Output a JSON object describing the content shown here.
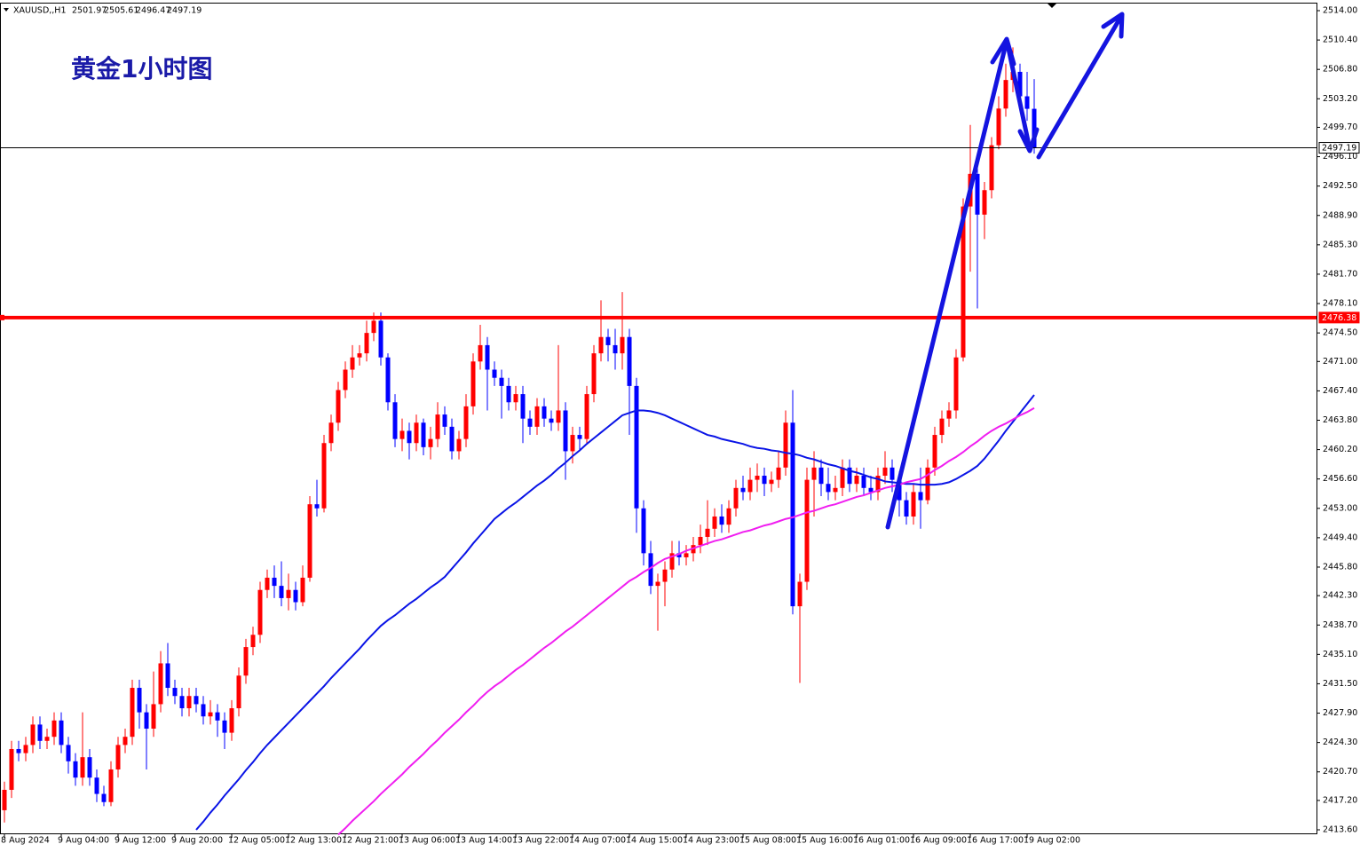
{
  "chart_data": {
    "type": "candlestick",
    "symbol": "XAUUSD,,H1",
    "annotation": "黄金1小时图",
    "up_color": "#ff0000",
    "down_color": "#0000ff",
    "ylim": [
      2413.6,
      2514
    ],
    "yticks": [
      {
        "value": 2514,
        "label": "2514.00"
      },
      {
        "value": 2510.4,
        "label": "2510.40"
      },
      {
        "value": 2506.8,
        "label": "2506.80"
      },
      {
        "value": 2503.2,
        "label": "2503.20"
      },
      {
        "value": 2499.7,
        "label": "2499.70"
      },
      {
        "value": 2496.1,
        "label": "2496.10"
      },
      {
        "value": 2492.5,
        "label": "2492.50"
      },
      {
        "value": 2488.9,
        "label": "2488.90"
      },
      {
        "value": 2485.3,
        "label": "2485.30"
      },
      {
        "value": 2481.7,
        "label": "2481.70"
      },
      {
        "value": 2478.1,
        "label": "2478.10"
      },
      {
        "value": 2474.5,
        "label": "2474.50"
      },
      {
        "value": 2471,
        "label": "2471.00"
      },
      {
        "value": 2467.4,
        "label": "2467.40"
      },
      {
        "value": 2463.8,
        "label": "2463.80"
      },
      {
        "value": 2460.2,
        "label": "2460.20"
      },
      {
        "value": 2456.6,
        "label": "2456.60"
      },
      {
        "value": 2453,
        "label": "2453.00"
      },
      {
        "value": 2449.4,
        "label": "2449.40"
      },
      {
        "value": 2445.8,
        "label": "2445.80"
      },
      {
        "value": 2442.3,
        "label": "2442.30"
      },
      {
        "value": 2438.7,
        "label": "2438.70"
      },
      {
        "value": 2435.1,
        "label": "2435.10"
      },
      {
        "value": 2431.5,
        "label": "2431.50"
      },
      {
        "value": 2427.9,
        "label": "2427.90"
      },
      {
        "value": 2424.3,
        "label": "2424.30"
      },
      {
        "value": 2420.7,
        "label": "2420.70"
      },
      {
        "value": 2417.2,
        "label": "2417.20"
      },
      {
        "value": 2413.6,
        "label": "2413.60"
      }
    ],
    "categories": [
      "8 Aug 2024",
      null,
      null,
      null,
      null,
      null,
      null,
      null,
      "9 Aug 04:00",
      null,
      null,
      null,
      null,
      null,
      null,
      null,
      "9 Aug 12:00",
      null,
      null,
      null,
      null,
      null,
      null,
      null,
      "9 Aug 20:00",
      null,
      null,
      null,
      null,
      null,
      null,
      null,
      "12 Aug 05:00",
      null,
      null,
      null,
      null,
      null,
      null,
      null,
      "12 Aug 13:00",
      null,
      null,
      null,
      null,
      null,
      null,
      null,
      "12 Aug 21:00",
      null,
      null,
      null,
      null,
      null,
      null,
      null,
      "13 Aug 06:00",
      null,
      null,
      null,
      null,
      null,
      null,
      null,
      "13 Aug 14:00",
      null,
      null,
      null,
      null,
      null,
      null,
      null,
      "13 Aug 22:00",
      null,
      null,
      null,
      null,
      null,
      null,
      null,
      "14 Aug 07:00",
      null,
      null,
      null,
      null,
      null,
      null,
      null,
      "14 Aug 15:00",
      null,
      null,
      null,
      null,
      null,
      null,
      null,
      "14 Aug 23:00",
      null,
      null,
      null,
      null,
      null,
      null,
      null,
      "15 Aug 08:00",
      null,
      null,
      null,
      null,
      null,
      null,
      null,
      "15 Aug 16:00",
      null,
      null,
      null,
      null,
      null,
      null,
      null,
      "16 Aug 01:00",
      null,
      null,
      null,
      null,
      null,
      null,
      null,
      "16 Aug 09:00",
      null,
      null,
      null,
      null,
      null,
      null,
      null,
      "16 Aug 17:00",
      null,
      null,
      null,
      null,
      null,
      null,
      null,
      "19 Aug 02:00",
      null
    ],
    "open": [
      2416,
      2418.5,
      2423.5,
      2423,
      2424,
      2426.5,
      2424.5,
      2425,
      2427,
      2424,
      2422,
      2420,
      2422.5,
      2420,
      2418,
      2417,
      2421,
      2424,
      2425,
      2431,
      2428,
      2426,
      2429,
      2434,
      2431,
      2430,
      2428.5,
      2430,
      2429,
      2427.5,
      2428,
      2427,
      2425.5,
      2428.5,
      2432.5,
      2436,
      2437.5,
      2443,
      2444.5,
      2443.5,
      2442,
      2443,
      2441.5,
      2444.5,
      2453.5,
      2453,
      2461,
      2463.5,
      2467.5,
      2470,
      2471.5,
      2472,
      2474.5,
      2476,
      2471.5,
      2466,
      2461.5,
      2462.5,
      2461,
      2463.5,
      2460.5,
      2461.5,
      2464.5,
      2463,
      2460,
      2461.5,
      2465.5,
      2471,
      2473,
      2470,
      2469,
      2468,
      2466,
      2467,
      2464,
      2463,
      2465.5,
      2464,
      2463.5,
      2465,
      2460,
      2462,
      2461.5,
      2467,
      2472,
      2474,
      2473,
      2472,
      2474,
      2468,
      2453,
      2447.5,
      2443.5,
      2444,
      2445.5,
      2447.5,
      2447,
      2447.5,
      2448.5,
      2449.5,
      2450.5,
      2452,
      2451,
      2453,
      2455.5,
      2455,
      2456.5,
      2457,
      2456,
      2456.5,
      2458,
      2463.5,
      2441,
      2444,
      2456.5,
      2458,
      2456,
      2455,
      2455.5,
      2458,
      2456,
      2457,
      2455.5,
      2455,
      2457,
      2458,
      2456.5,
      2454,
      2452,
      2455,
      2454,
      2458,
      2462,
      2464,
      2465,
      2471.5,
      2490,
      2494,
      2489,
      2492,
      2497.5,
      2502,
      2505.5,
      2506.5,
      2503.5,
      2501.97
    ],
    "high": [
      2419.5,
      2424.5,
      2424.5,
      2425,
      2427.5,
      2427.5,
      2426,
      2428,
      2428,
      2425,
      2423,
      2428,
      2423.5,
      2421,
      2419,
      2422,
      2425,
      2426,
      2432,
      2432,
      2429,
      2433,
      2435.5,
      2436.5,
      2432,
      2431,
      2431,
      2431,
      2430,
      2429.5,
      2429,
      2428,
      2429.5,
      2433.5,
      2437,
      2438.5,
      2444,
      2445.5,
      2446,
      2446.5,
      2445,
      2444,
      2446,
      2454.5,
      2456.5,
      2462,
      2464.5,
      2468.5,
      2471,
      2473,
      2473,
      2476,
      2477,
      2477,
      2472,
      2467,
      2464,
      2463.5,
      2464.5,
      2464,
      2463,
      2466,
      2465.5,
      2464,
      2462.5,
      2467,
      2472,
      2475.5,
      2474,
      2471,
      2470,
      2469,
      2468,
      2468,
      2465,
      2466.5,
      2466.5,
      2465,
      2473,
      2466,
      2463,
      2463,
      2468,
      2473,
      2478.5,
      2475,
      2475,
      2479.5,
      2475,
      2469,
      2454,
      2449,
      2445,
      2446.5,
      2449,
      2449,
      2448.5,
      2449.5,
      2451,
      2454,
      2453,
      2453.5,
      2454,
      2456.5,
      2457,
      2458,
      2458.5,
      2458,
      2457.5,
      2460,
      2465,
      2467.5,
      2445,
      2458,
      2460,
      2459,
      2458,
      2457,
      2459,
      2459,
      2458,
      2458,
      2457,
      2458,
      2460,
      2459,
      2457.5,
      2455,
      2456,
      2458,
      2459,
      2463,
      2465,
      2466,
      2472.5,
      2491,
      2500,
      2495,
      2493,
      2498.5,
      2503.5,
      2507.5,
      2509.5,
      2507.5,
      2506.5,
      2505.61
    ],
    "low": [
      2414.5,
      2417.5,
      2422,
      2422,
      2423,
      2423.5,
      2423.5,
      2424,
      2423,
      2420.5,
      2419,
      2419,
      2419,
      2417,
      2416.5,
      2416.5,
      2420,
      2423,
      2424,
      2426,
      2421,
      2425,
      2428,
      2430,
      2429,
      2427.5,
      2427.5,
      2428,
      2426.5,
      2426.5,
      2425,
      2423.5,
      2424.5,
      2427.5,
      2431.5,
      2435,
      2436.5,
      2442,
      2442,
      2441,
      2440.5,
      2440.5,
      2441,
      2444,
      2452,
      2452.5,
      2460,
      2462.5,
      2466.5,
      2469,
      2470.5,
      2471,
      2473.5,
      2470.5,
      2465,
      2460.5,
      2460,
      2459,
      2460,
      2459.5,
      2459,
      2460.5,
      2462,
      2459,
      2459,
      2460.5,
      2464.5,
      2470,
      2465,
      2468,
      2464,
      2465,
      2465,
      2461,
      2462,
      2462,
      2463,
      2462.5,
      2462.5,
      2456.5,
      2458.5,
      2460,
      2461,
      2466,
      2471,
      2471,
      2470,
      2470,
      2462,
      2450,
      2446,
      2442.5,
      2438,
      2441,
      2444.5,
      2446,
      2446,
      2446.5,
      2447.5,
      2448.5,
      2449.5,
      2450,
      2450,
      2452,
      2454,
      2454,
      2455,
      2454.5,
      2455,
      2455.5,
      2457,
      2440,
      2431.6,
      2443,
      2452,
      2454.5,
      2454,
      2454,
      2454.5,
      2455,
      2455,
      2454.5,
      2454,
      2454,
      2456,
      2455,
      2452,
      2451,
      2451,
      2450.5,
      2453.5,
      2457,
      2461,
      2463,
      2464,
      2471,
      2482,
      2477.5,
      2486,
      2491,
      2497,
      2501,
      2504,
      2502,
      2500.5,
      2496.47
    ],
    "close": [
      2418.5,
      2423.5,
      2423,
      2424,
      2426.5,
      2424.5,
      2425,
      2427,
      2424,
      2422,
      2420,
      2422.5,
      2420,
      2418,
      2417,
      2421,
      2424,
      2425,
      2431,
      2428,
      2426,
      2429,
      2434,
      2431,
      2430,
      2428.5,
      2430,
      2429,
      2427.5,
      2428,
      2427,
      2425.5,
      2428.5,
      2432.5,
      2436,
      2437.5,
      2443,
      2444.5,
      2443.5,
      2442,
      2443,
      2441.5,
      2444.5,
      2453.5,
      2453,
      2461,
      2463.5,
      2467.5,
      2470,
      2471.5,
      2472,
      2474.5,
      2476,
      2471.5,
      2466,
      2461.5,
      2462.5,
      2461,
      2463.5,
      2460.5,
      2461.5,
      2464.5,
      2463,
      2460,
      2461.5,
      2465.5,
      2471,
      2473,
      2470,
      2469,
      2468,
      2466,
      2467,
      2464,
      2463,
      2465.5,
      2464,
      2463.5,
      2465,
      2460,
      2462,
      2461.5,
      2467,
      2472,
      2474,
      2473,
      2472,
      2474,
      2468,
      2453,
      2447.5,
      2443.5,
      2444,
      2445.5,
      2447.5,
      2447,
      2447.5,
      2448.5,
      2449.5,
      2450.5,
      2452,
      2451,
      2453,
      2455.5,
      2455,
      2456.5,
      2457,
      2456,
      2456.5,
      2458,
      2463.5,
      2441,
      2444,
      2456.5,
      2458,
      2456,
      2455,
      2455.5,
      2458,
      2456,
      2457,
      2455.5,
      2455,
      2457,
      2458,
      2456.5,
      2454,
      2452,
      2455,
      2454,
      2458,
      2462,
      2464,
      2465,
      2471.5,
      2490,
      2494,
      2489,
      2492,
      2497.5,
      2502,
      2505.5,
      2506.5,
      2503.5,
      2501.97,
      2497.19
    ],
    "overlays": [
      {
        "color": "#0a14e6",
        "values": [
          null,
          null,
          null,
          null,
          null,
          null,
          null,
          null,
          null,
          null,
          null,
          null,
          null,
          null,
          null,
          null,
          null,
          null,
          null,
          null,
          null,
          null,
          null,
          null,
          null,
          null,
          null,
          2413.6,
          2414.6,
          2415.7,
          2416.7,
          2417.8,
          2418.8,
          2419.8,
          2420.9,
          2421.9,
          2423,
          2424,
          2424.9,
          2425.8,
          2426.7,
          2427.6,
          2428.5,
          2429.4,
          2430.3,
          2431.2,
          2432.2,
          2433.1,
          2434,
          2434.9,
          2435.8,
          2436.8,
          2437.7,
          2438.6,
          2439.3,
          2439.9,
          2440.6,
          2441.3,
          2441.9,
          2442.6,
          2443.3,
          2443.9,
          2444.6,
          2445.6,
          2446.6,
          2447.6,
          2448.7,
          2449.7,
          2450.7,
          2451.7,
          2452.4,
          2453.1,
          2453.7,
          2454.4,
          2455.1,
          2455.8,
          2456.4,
          2457.1,
          2457.9,
          2458.6,
          2459.4,
          2460.1,
          2460.9,
          2461.6,
          2462.3,
          2463,
          2463.7,
          2464.4,
          2464.7,
          2465,
          2465,
          2464.9,
          2464.7,
          2464.4,
          2464,
          2463.6,
          2463.2,
          2462.8,
          2462.4,
          2462,
          2461.8,
          2461.5,
          2461.3,
          2461.1,
          2460.9,
          2460.6,
          2460.4,
          2460.3,
          2460.1,
          2460,
          2459.8,
          2459.7,
          2459.5,
          2459.2,
          2459,
          2458.7,
          2458.4,
          2458.2,
          2457.9,
          2457.6,
          2457.4,
          2457.1,
          2456.8,
          2456.6,
          2456.3,
          2456.2,
          2456.1,
          2456,
          2456,
          2455.9,
          2455.9,
          2455.9,
          2456,
          2456.2,
          2456.6,
          2457.1,
          2457.6,
          2458.2,
          2459.1,
          2460.2,
          2461.3,
          2462.5,
          2463.6,
          2464.7,
          2465.8,
          2466.9
        ]
      },
      {
        "color": "#f01ef0",
        "values": [
          null,
          null,
          null,
          null,
          null,
          null,
          null,
          null,
          null,
          null,
          null,
          null,
          null,
          null,
          null,
          null,
          null,
          null,
          null,
          null,
          null,
          null,
          null,
          null,
          null,
          null,
          null,
          null,
          null,
          null,
          null,
          null,
          null,
          null,
          null,
          null,
          null,
          null,
          null,
          null,
          null,
          null,
          null,
          null,
          null,
          null,
          null,
          2413,
          2413.8,
          2414.7,
          2415.5,
          2416.3,
          2417.1,
          2418,
          2418.8,
          2419.6,
          2420.4,
          2421.3,
          2422.1,
          2422.9,
          2423.8,
          2424.6,
          2425.5,
          2426.3,
          2427.1,
          2428,
          2428.8,
          2429.7,
          2430.5,
          2431.2,
          2431.8,
          2432.5,
          2433.2,
          2433.8,
          2434.5,
          2435.2,
          2435.9,
          2436.5,
          2437.2,
          2437.9,
          2438.5,
          2439.2,
          2439.9,
          2440.6,
          2441.3,
          2442,
          2442.7,
          2443.4,
          2444.1,
          2444.6,
          2445.2,
          2445.7,
          2446.3,
          2446.8,
          2447.1,
          2447.4,
          2447.8,
          2448.1,
          2448.4,
          2448.7,
          2449,
          2449.2,
          2449.5,
          2449.8,
          2450.1,
          2450.3,
          2450.6,
          2450.9,
          2451.1,
          2451.4,
          2451.7,
          2451.9,
          2452.2,
          2452.5,
          2452.7,
          2453,
          2453.3,
          2453.5,
          2453.8,
          2454.1,
          2454.4,
          2454.6,
          2454.9,
          2455.2,
          2455.5,
          2455.7,
          2455.9,
          2456.2,
          2456.4,
          2456.6,
          2457.1,
          2457.7,
          2458.2,
          2458.8,
          2459.3,
          2459.9,
          2460.6,
          2461.2,
          2461.9,
          2462.5,
          2463,
          2463.4,
          2463.9,
          2464.4,
          2464.8,
          2465.3
        ]
      }
    ],
    "hlines": [
      {
        "value": 2476.38,
        "color": "#ff0000"
      },
      {
        "value": 2497.19,
        "color": "#000000"
      }
    ]
  }
}
